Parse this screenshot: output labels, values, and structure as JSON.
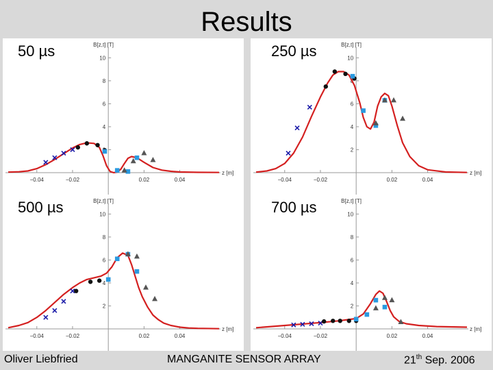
{
  "slide": {
    "title": "Results",
    "footer_left": "Oliver Liebfried",
    "footer_center": "MANGANITE SENSOR ARRAY",
    "footer_right_day": "21",
    "footer_right_sup": "th",
    "footer_right_rest": " Sep. 2006"
  },
  "colors": {
    "curve": "#d42020",
    "cross": "#1a1aa8",
    "dot": "#111111",
    "square": "#2a9ae0",
    "triangle": "#555555"
  },
  "chart_data": [
    {
      "type": "scatter",
      "title": "50 µs",
      "ylabel": "B[z,t] [T]",
      "xlabel": "z [m]",
      "xticks": [
        -0.04,
        -0.02,
        0.02,
        0.04
      ],
      "xtick_labels": [
        "−0.04",
        "−0.02",
        "0.02",
        "0.04"
      ],
      "yticks": [
        2,
        4,
        6,
        8,
        10
      ],
      "xlim": [
        -0.056,
        0.062
      ],
      "ylim": [
        0,
        10.5
      ],
      "curve": {
        "x": [
          -0.056,
          -0.05,
          -0.045,
          -0.04,
          -0.035,
          -0.03,
          -0.025,
          -0.02,
          -0.016,
          -0.012,
          -0.008,
          -0.005,
          -0.003,
          -0.001,
          0.001,
          0.003,
          0.005,
          0.007,
          0.009,
          0.011,
          0.013,
          0.016,
          0.02,
          0.025,
          0.03,
          0.035,
          0.04,
          0.05,
          0.062
        ],
        "y": [
          0.05,
          0.08,
          0.15,
          0.35,
          0.7,
          1.15,
          1.65,
          2.15,
          2.45,
          2.6,
          2.55,
          2.2,
          1.5,
          0.6,
          0.1,
          0,
          0.05,
          0.3,
          0.8,
          1.25,
          1.4,
          1.3,
          0.9,
          0.45,
          0.22,
          0.12,
          0.06,
          0.03,
          0.02
        ]
      },
      "series": [
        {
          "name": "cross",
          "marker": "cross",
          "x": [
            -0.035,
            -0.03,
            -0.025,
            -0.02
          ],
          "y": [
            0.9,
            1.3,
            1.7,
            2.0
          ]
        },
        {
          "name": "dot",
          "marker": "dot",
          "x": [
            -0.017,
            -0.012,
            -0.006,
            -0.002
          ],
          "y": [
            2.2,
            2.55,
            2.4,
            1.95
          ]
        },
        {
          "name": "square",
          "marker": "square",
          "x": [
            -0.002,
            0.005,
            0.011,
            0.016
          ],
          "y": [
            1.85,
            0.2,
            0.1,
            1.3
          ]
        },
        {
          "name": "triangle",
          "marker": "triangle",
          "x": [
            0.009,
            0.014,
            0.02,
            0.025
          ],
          "y": [
            0.2,
            1.0,
            1.7,
            1.1
          ]
        }
      ]
    },
    {
      "type": "scatter",
      "title": "250 µs",
      "ylabel": "B[z,t] [T]",
      "xlabel": "z [m]",
      "xticks": [
        -0.04,
        -0.02,
        0.02,
        0.04
      ],
      "xtick_labels": [
        "−0.04",
        "−0.02",
        "0.02",
        "0.04"
      ],
      "yticks": [
        2,
        4,
        6,
        8,
        10
      ],
      "xlim": [
        -0.056,
        0.062
      ],
      "ylim": [
        0,
        10.5
      ],
      "curve": {
        "x": [
          -0.056,
          -0.05,
          -0.045,
          -0.04,
          -0.035,
          -0.03,
          -0.025,
          -0.02,
          -0.016,
          -0.013,
          -0.01,
          -0.007,
          -0.004,
          -0.001,
          0.002,
          0.004,
          0.006,
          0.008,
          0.01,
          0.012,
          0.014,
          0.016,
          0.018,
          0.02,
          0.023,
          0.026,
          0.03,
          0.035,
          0.04,
          0.05,
          0.062
        ],
        "y": [
          0.05,
          0.15,
          0.35,
          0.8,
          1.7,
          3.1,
          4.9,
          6.6,
          7.8,
          8.5,
          8.8,
          8.8,
          8.5,
          7.6,
          6.1,
          4.8,
          4.0,
          3.8,
          4.4,
          5.8,
          6.6,
          6.9,
          6.7,
          5.8,
          4.1,
          2.6,
          1.4,
          0.6,
          0.25,
          0.06,
          0.02
        ]
      },
      "series": [
        {
          "name": "cross",
          "marker": "cross",
          "x": [
            -0.038,
            -0.033,
            -0.026
          ],
          "y": [
            1.7,
            3.9,
            5.7
          ]
        },
        {
          "name": "dot",
          "marker": "dot",
          "x": [
            -0.017,
            -0.012,
            -0.006,
            -0.001
          ],
          "y": [
            7.5,
            8.8,
            8.6,
            8.2
          ]
        },
        {
          "name": "square",
          "marker": "square",
          "x": [
            -0.002,
            0.004,
            0.011,
            0.016
          ],
          "y": [
            8.4,
            5.4,
            4.1,
            6.3
          ]
        },
        {
          "name": "triangle",
          "marker": "triangle",
          "x": [
            0.011,
            0.016,
            0.021,
            0.026
          ],
          "y": [
            4.3,
            6.3,
            6.3,
            4.7
          ]
        }
      ]
    },
    {
      "type": "scatter",
      "title": "500 µs",
      "ylabel": "B[z,t] [T]",
      "xlabel": "z [m]",
      "xticks": [
        -0.04,
        -0.02,
        0.02,
        0.04
      ],
      "xtick_labels": [
        "−0.04",
        "−0.02",
        "0.02",
        "0.04"
      ],
      "yticks": [
        2,
        4,
        6,
        8,
        10
      ],
      "xlim": [
        -0.056,
        0.062
      ],
      "ylim": [
        0,
        10.5
      ],
      "curve": {
        "x": [
          -0.056,
          -0.05,
          -0.045,
          -0.04,
          -0.035,
          -0.03,
          -0.025,
          -0.02,
          -0.016,
          -0.012,
          -0.008,
          -0.004,
          -0.001,
          0.002,
          0.005,
          0.008,
          0.011,
          0.013,
          0.015,
          0.017,
          0.019,
          0.022,
          0.025,
          0.028,
          0.031,
          0.035,
          0.04,
          0.045,
          0.05,
          0.062
        ],
        "y": [
          0.1,
          0.3,
          0.55,
          1.0,
          1.6,
          2.3,
          3.0,
          3.6,
          4.0,
          4.3,
          4.45,
          4.6,
          4.85,
          5.4,
          6.2,
          6.6,
          6.4,
          5.6,
          4.6,
          3.6,
          2.8,
          1.9,
          1.2,
          0.8,
          0.5,
          0.3,
          0.15,
          0.08,
          0.05,
          0.02
        ]
      },
      "series": [
        {
          "name": "cross",
          "marker": "cross",
          "x": [
            -0.035,
            -0.03,
            -0.025,
            -0.02
          ],
          "y": [
            1.0,
            1.6,
            2.4,
            3.3
          ]
        },
        {
          "name": "dot",
          "marker": "dot",
          "x": [
            -0.018,
            -0.01,
            -0.005,
            0.0
          ],
          "y": [
            3.3,
            4.1,
            4.2,
            4.3
          ]
        },
        {
          "name": "square",
          "marker": "square",
          "x": [
            0.0,
            0.005,
            0.011,
            0.016
          ],
          "y": [
            4.3,
            6.1,
            6.5,
            5.0
          ]
        },
        {
          "name": "triangle",
          "marker": "triangle",
          "x": [
            0.011,
            0.016,
            0.021,
            0.026
          ],
          "y": [
            6.5,
            6.3,
            3.6,
            2.6
          ]
        }
      ]
    },
    {
      "type": "scatter",
      "title": "700 µs",
      "ylabel": "B[z,t] [T]",
      "xlabel": "z [m]",
      "xticks": [
        -0.04,
        -0.02,
        0.02,
        0.04
      ],
      "xtick_labels": [
        "−0.04",
        "−0.02",
        "0.02",
        "0.04"
      ],
      "yticks": [
        2,
        4,
        6,
        8,
        10
      ],
      "xlim": [
        -0.056,
        0.062
      ],
      "ylim": [
        0,
        10.5
      ],
      "curve": {
        "x": [
          -0.056,
          -0.04,
          -0.02,
          -0.01,
          0.0,
          0.004,
          0.008,
          0.011,
          0.013,
          0.015,
          0.017,
          0.019,
          0.021,
          0.024,
          0.028,
          0.035,
          0.045,
          0.062
        ],
        "y": [
          0.1,
          0.3,
          0.55,
          0.7,
          0.9,
          1.3,
          2.2,
          3.0,
          3.3,
          3.1,
          2.4,
          1.6,
          1.05,
          0.65,
          0.45,
          0.3,
          0.2,
          0.15
        ]
      },
      "series": [
        {
          "name": "cross",
          "marker": "cross",
          "x": [
            -0.035,
            -0.03,
            -0.025,
            -0.02
          ],
          "y": [
            0.35,
            0.4,
            0.45,
            0.5
          ]
        },
        {
          "name": "dot",
          "marker": "dot",
          "x": [
            -0.018,
            -0.013,
            -0.009,
            -0.004,
            0.0
          ],
          "y": [
            0.65,
            0.7,
            0.7,
            0.7,
            0.7
          ]
        },
        {
          "name": "square",
          "marker": "square",
          "x": [
            0.0,
            0.006,
            0.011,
            0.016
          ],
          "y": [
            0.85,
            1.25,
            2.5,
            1.9
          ]
        },
        {
          "name": "triangle",
          "marker": "triangle",
          "x": [
            0.011,
            0.016,
            0.02,
            0.025
          ],
          "y": [
            1.8,
            2.7,
            2.5,
            0.6
          ]
        }
      ]
    }
  ]
}
